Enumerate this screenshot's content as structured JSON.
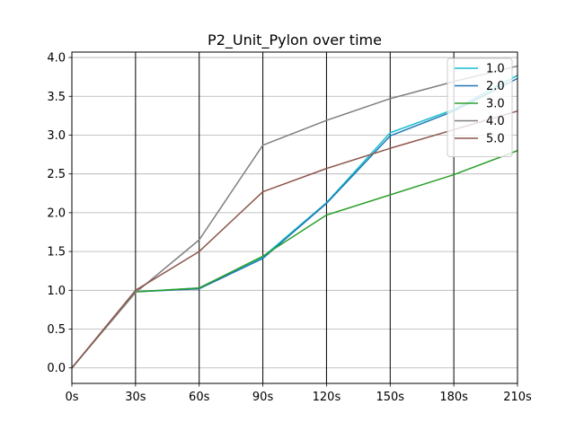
{
  "chart_data": {
    "type": "line",
    "title": "P2_Unit_Pylon over time",
    "xlabel": "",
    "ylabel": "",
    "x": [
      0,
      30,
      60,
      90,
      120,
      150,
      180,
      210
    ],
    "x_tick_labels": [
      "0s",
      "30s",
      "60s",
      "90s",
      "120s",
      "150s",
      "180s",
      "210s"
    ],
    "xlim": [
      0,
      210
    ],
    "y_ticks": [
      0.0,
      0.5,
      1.0,
      1.5,
      2.0,
      2.5,
      3.0,
      3.5,
      4.0
    ],
    "y_tick_labels": [
      "0.0",
      "0.5",
      "1.0",
      "1.5",
      "2.0",
      "2.5",
      "3.0",
      "3.5",
      "4.0"
    ],
    "ylim": [
      -0.2,
      4.07
    ],
    "grid": {
      "horizontal": true,
      "vertical_lines_at_x_ticks": true
    },
    "legend_position": "top-right",
    "series": [
      {
        "name": "1.0",
        "color": "#17becf",
        "values": [
          0.0,
          0.98,
          1.03,
          1.43,
          2.13,
          3.03,
          3.33,
          3.77
        ]
      },
      {
        "name": "2.0",
        "color": "#1f77b4",
        "values": [
          0.0,
          0.98,
          1.02,
          1.41,
          2.12,
          2.99,
          3.31,
          3.73
        ]
      },
      {
        "name": "3.0",
        "color": "#2ca02c",
        "values": [
          0.0,
          0.98,
          1.03,
          1.44,
          1.97,
          2.23,
          2.49,
          2.8
        ]
      },
      {
        "name": "4.0",
        "color": "#7f7f7f",
        "values": [
          0.0,
          0.97,
          1.65,
          2.87,
          3.19,
          3.47,
          3.69,
          3.89
        ]
      },
      {
        "name": "5.0",
        "color": "#8c564b",
        "values": [
          0.0,
          1.0,
          1.5,
          2.27,
          2.57,
          2.83,
          3.07,
          3.31
        ]
      }
    ]
  }
}
